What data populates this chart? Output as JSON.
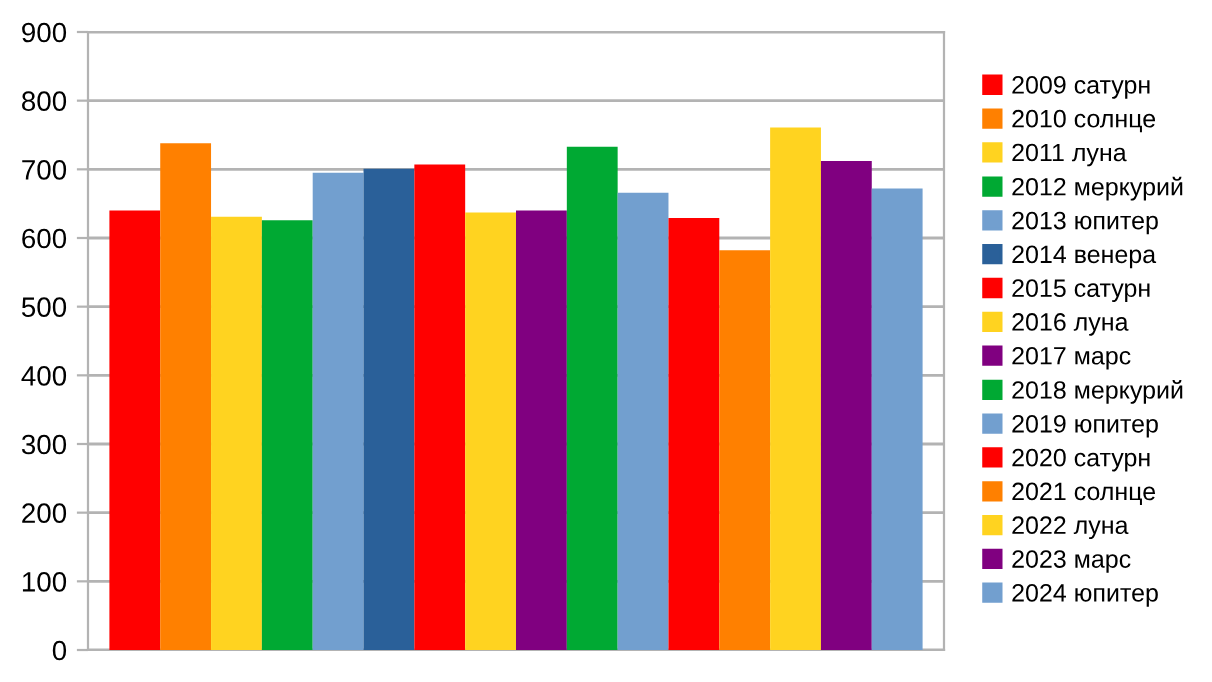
{
  "chart_data": {
    "type": "bar",
    "categories": [
      null
    ],
    "ylim": [
      0,
      900
    ],
    "yticks": [
      0,
      100,
      200,
      300,
      400,
      500,
      600,
      700,
      800,
      900
    ],
    "grid": "y",
    "legend": "right",
    "series": [
      {
        "name": "2009 сатурн",
        "color": "#ff0000",
        "values": [
          640
        ]
      },
      {
        "name": "2010 солнце",
        "color": "#ff8000",
        "values": [
          738
        ]
      },
      {
        "name": "2011 луна",
        "color": "#ffd320",
        "values": [
          631
        ]
      },
      {
        "name": "2012 меркурий",
        "color": "#00a933",
        "values": [
          626
        ]
      },
      {
        "name": "2013 юпитер",
        "color": "#729fcf",
        "values": [
          695
        ]
      },
      {
        "name": "2014 венера",
        "color": "#2a6099",
        "values": [
          701
        ]
      },
      {
        "name": "2015 сатурн",
        "color": "#ff0000",
        "values": [
          707
        ]
      },
      {
        "name": "2016 луна",
        "color": "#ffd320",
        "values": [
          637
        ]
      },
      {
        "name": "2017 марс",
        "color": "#800080",
        "values": [
          640
        ]
      },
      {
        "name": "2018 меркурий",
        "color": "#00a933",
        "values": [
          733
        ]
      },
      {
        "name": "2019 юпитер",
        "color": "#729fcf",
        "values": [
          666
        ]
      },
      {
        "name": "2020 сатурн",
        "color": "#ff0000",
        "values": [
          629
        ]
      },
      {
        "name": "2021 солнце",
        "color": "#ff8000",
        "values": [
          582
        ]
      },
      {
        "name": "2022 луна",
        "color": "#ffd320",
        "values": [
          761
        ]
      },
      {
        "name": "2023 марс",
        "color": "#800080",
        "values": [
          712
        ]
      },
      {
        "name": "2024 юпитер",
        "color": "#729fcf",
        "values": [
          672
        ]
      }
    ]
  }
}
